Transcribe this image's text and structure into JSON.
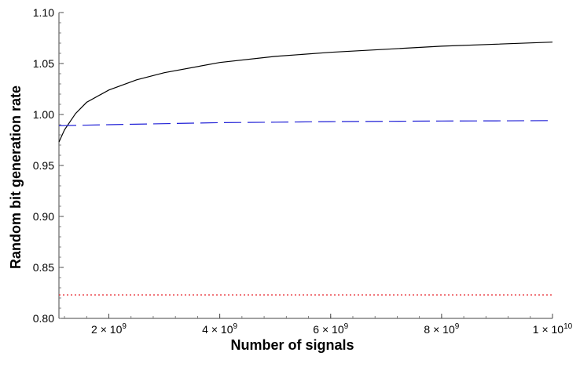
{
  "chart_data": {
    "type": "line",
    "title": "",
    "xlabel": "Number of signals",
    "ylabel": "Random bit generation rate",
    "xlim": [
      1100000000,
      10000000000
    ],
    "ylim": [
      0.8,
      1.1
    ],
    "grid": false,
    "legend": "none",
    "x_ticks": [
      {
        "value": 2000000000,
        "mantissa": "2",
        "exp": "9"
      },
      {
        "value": 4000000000,
        "mantissa": "4",
        "exp": "9"
      },
      {
        "value": 6000000000,
        "mantissa": "6",
        "exp": "9"
      },
      {
        "value": 8000000000,
        "mantissa": "8",
        "exp": "9"
      },
      {
        "value": 10000000000,
        "mantissa": "1",
        "exp": "10"
      }
    ],
    "x_tick_times_sign": "×",
    "x_tick_base": "10",
    "y_ticks": [
      "0.80",
      "0.85",
      "0.90",
      "0.95",
      "1.00",
      "1.05",
      "1.10"
    ],
    "series": [
      {
        "style": "solid",
        "color": "#000000",
        "x": [
          1100000000,
          1200000000,
          1400000000,
          1600000000,
          2000000000,
          2500000000,
          3000000000,
          4000000000,
          5000000000,
          6000000000,
          7000000000,
          8000000000,
          9000000000,
          10000000000
        ],
        "y": [
          0.973,
          0.985,
          1.001,
          1.012,
          1.024,
          1.034,
          1.041,
          1.051,
          1.057,
          1.061,
          1.064,
          1.067,
          1.069,
          1.071
        ]
      },
      {
        "style": "dashed",
        "color": "#1f1fd6",
        "x": [
          1100000000,
          2000000000,
          3000000000,
          4000000000,
          5000000000,
          6000000000,
          7000000000,
          8000000000,
          9000000000,
          10000000000
        ],
        "y": [
          0.989,
          0.99,
          0.991,
          0.992,
          0.9925,
          0.993,
          0.9933,
          0.9936,
          0.9938,
          0.994
        ]
      },
      {
        "style": "dotted",
        "color": "#e8333a",
        "x": [
          1100000000,
          10000000000
        ],
        "y": [
          0.823,
          0.823
        ]
      }
    ]
  }
}
